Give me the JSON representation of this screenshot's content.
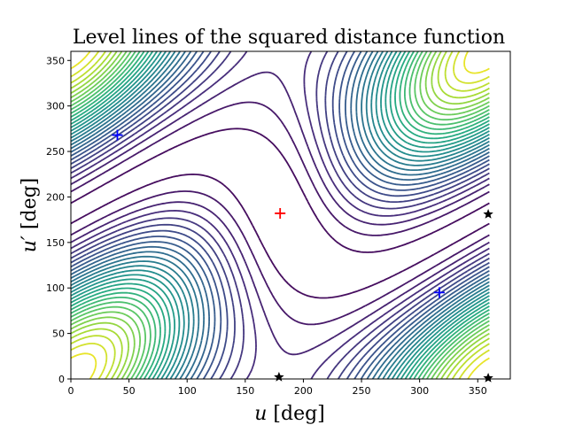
{
  "chart_data": {
    "type": "contour",
    "title": "Level lines of the squared distance function",
    "xlabel": {
      "var": "u",
      "unit": " [deg]"
    },
    "ylabel": {
      "var": "u′",
      "unit": " [deg]"
    },
    "xlim": [
      0,
      378
    ],
    "ylim": [
      0,
      360
    ],
    "xticks": [
      0,
      50,
      100,
      150,
      200,
      250,
      300,
      350
    ],
    "yticks": [
      0,
      50,
      100,
      150,
      200,
      250,
      300,
      350
    ],
    "grid": false,
    "colormap": "viridis",
    "colors": [
      "#440154",
      "#472c7a",
      "#3b518b",
      "#2c718e",
      "#21908d",
      "#27ad81",
      "#5cc863",
      "#aadc32",
      "#fde725"
    ],
    "levels": 30,
    "field": {
      "maximum": [
        180,
        182
      ],
      "saddle_vertical_spacing": 180
    },
    "markers": [
      {
        "name": "maximum",
        "shape": "plus",
        "color": "#ff0000",
        "x": 180,
        "y": 182
      },
      {
        "name": "minimum",
        "shape": "plus",
        "color": "#0000ff",
        "x": 40,
        "y": 268
      },
      {
        "name": "minimum",
        "shape": "plus",
        "color": "#0000ff",
        "x": 317,
        "y": 95
      },
      {
        "name": "saddle",
        "shape": "star",
        "color": "#000000",
        "x": 179,
        "y": 2
      },
      {
        "name": "saddle",
        "shape": "star",
        "color": "#000000",
        "x": 359,
        "y": 181
      },
      {
        "name": "saddle",
        "shape": "star",
        "color": "#000000",
        "x": 359,
        "y": 1
      }
    ]
  }
}
